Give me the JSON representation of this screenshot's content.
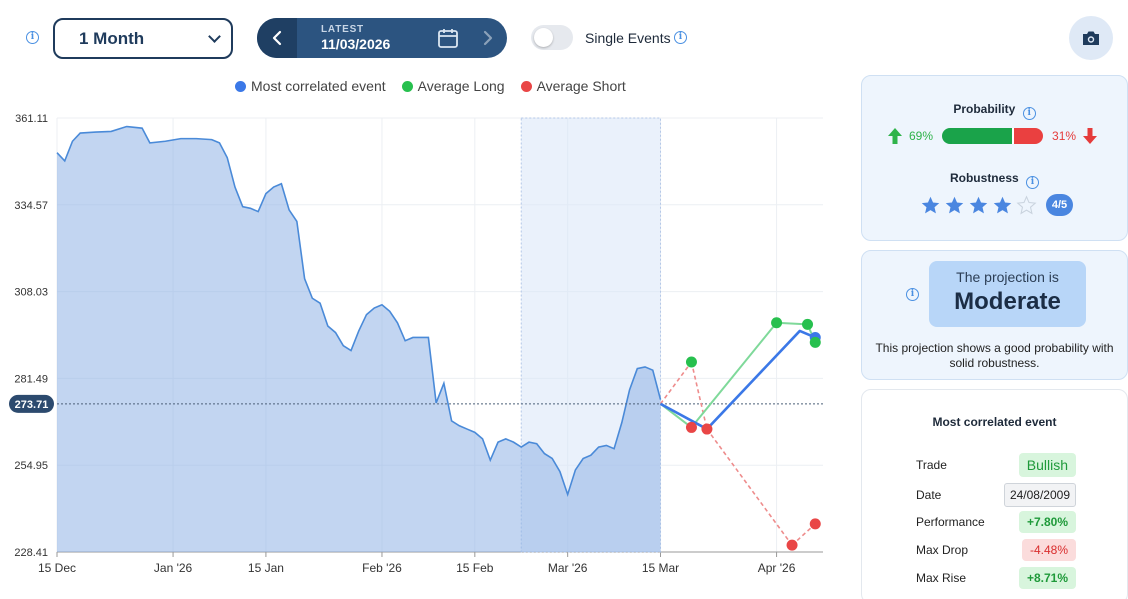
{
  "toolbar": {
    "period_value": "1 Month",
    "latest_label": "LATEST",
    "latest_date": "11/03/2026",
    "single_events_label": "Single Events",
    "single_events_on": false
  },
  "legend": [
    {
      "name": "Most correlated event",
      "color": "#3b78e7"
    },
    {
      "name": "Average Long",
      "color": "#27c04e"
    },
    {
      "name": "Average Short",
      "color": "#e94646"
    }
  ],
  "chart_data": {
    "type": "line",
    "y_ticks": [
      "361.11",
      "334.57",
      "308.03",
      "281.49",
      "254.95",
      "228.41"
    ],
    "ylim": [
      228.41,
      361.11
    ],
    "x_ticks": [
      "15 Dec",
      "Jan '26",
      "15 Jan",
      "Feb '26",
      "15 Feb",
      "Mar '26",
      "15 Mar",
      "Apr '26"
    ],
    "current_value_label": "273.71",
    "current_value": 273.71,
    "price_series": [
      [
        0,
        350.5
      ],
      [
        1,
        348.0
      ],
      [
        2,
        354.0
      ],
      [
        3,
        356.5
      ],
      [
        5,
        356.8
      ],
      [
        7,
        357.0
      ],
      [
        9,
        358.5
      ],
      [
        11,
        358.0
      ],
      [
        12,
        353.5
      ],
      [
        14,
        354.0
      ],
      [
        16,
        354.8
      ],
      [
        18,
        354.8
      ],
      [
        20,
        354.5
      ],
      [
        21,
        353.5
      ],
      [
        22,
        349.0
      ],
      [
        23,
        340.0
      ],
      [
        24,
        334.0
      ],
      [
        25,
        333.5
      ],
      [
        26,
        332.5
      ],
      [
        27,
        338.0
      ],
      [
        28,
        340.0
      ],
      [
        29,
        341.0
      ],
      [
        30,
        333.0
      ],
      [
        31,
        329.5
      ],
      [
        32,
        312.0
      ],
      [
        33,
        306.0
      ],
      [
        34,
        304.5
      ],
      [
        35,
        297.5
      ],
      [
        36,
        295.5
      ],
      [
        37,
        291.5
      ],
      [
        38,
        290.0
      ],
      [
        39,
        296.0
      ],
      [
        40,
        301.0
      ],
      [
        41,
        303.0
      ],
      [
        42,
        304.0
      ],
      [
        43,
        302.0
      ],
      [
        44,
        298.5
      ],
      [
        45,
        293.0
      ],
      [
        46,
        294.0
      ],
      [
        47,
        294.0
      ],
      [
        48,
        294.0
      ],
      [
        49,
        274.0
      ],
      [
        50,
        280.0
      ],
      [
        51,
        268.5
      ],
      [
        52,
        267.0
      ],
      [
        53,
        266.0
      ],
      [
        54,
        265.0
      ],
      [
        55,
        263.0
      ],
      [
        56,
        256.5
      ],
      [
        57,
        262.0
      ],
      [
        58,
        263.0
      ],
      [
        59,
        262.0
      ],
      [
        60,
        260.5
      ],
      [
        61,
        262.0
      ],
      [
        62,
        261.5
      ],
      [
        63,
        258.5
      ],
      [
        64,
        257.0
      ],
      [
        65,
        253.0
      ],
      [
        66,
        246.0
      ],
      [
        67,
        253.5
      ],
      [
        68,
        257.0
      ],
      [
        69,
        258.0
      ],
      [
        70,
        260.5
      ],
      [
        71,
        261.0
      ],
      [
        72,
        260.0
      ],
      [
        73,
        268.0
      ],
      [
        74,
        278.0
      ],
      [
        75,
        284.5
      ],
      [
        76,
        285.0
      ],
      [
        77,
        284.0
      ],
      [
        78,
        275.0
      ]
    ],
    "projections": {
      "most_correlated": [
        [
          78,
          273.71
        ],
        [
          84,
          266.0
        ],
        [
          96,
          296.0
        ],
        [
          98,
          294.0
        ]
      ],
      "avg_long": [
        [
          78,
          273.71
        ],
        [
          82,
          266.5
        ],
        [
          93,
          298.5
        ],
        [
          97,
          298.0
        ],
        [
          98,
          292.5
        ]
      ],
      "avg_short": [
        [
          78,
          273.71
        ],
        [
          82,
          286.5
        ],
        [
          84,
          266.0
        ],
        [
          95,
          230.5
        ],
        [
          98,
          237.0
        ]
      ],
      "avg_long_dashed": [
        [
          78,
          273.71
        ],
        [
          82,
          286.5
        ]
      ],
      "avg_short_dashed": [
        [
          84,
          266.0
        ],
        [
          95,
          230.5
        ]
      ]
    },
    "highlight_range": [
      60,
      78
    ],
    "grid": true
  },
  "probability": {
    "title": "Probability",
    "long_pct": "69%",
    "short_pct": "31%",
    "long_value": 0.69
  },
  "robustness": {
    "title": "Robustness",
    "score_label": "4/5",
    "score": 4,
    "max": 5
  },
  "projection": {
    "label": "The projection is",
    "value": "Moderate",
    "description": "This projection shows a good probability with solid robustness."
  },
  "correlated_event": {
    "title": "Most correlated event",
    "rows": [
      {
        "key": "Trade",
        "value": "Bullish"
      },
      {
        "key": "Date",
        "value": "24/08/2009"
      },
      {
        "key": "Performance",
        "value": "+7.80%"
      },
      {
        "key": "Max Drop",
        "value": "-4.48%"
      },
      {
        "key": "Max Rise",
        "value": "+8.71%"
      }
    ]
  }
}
